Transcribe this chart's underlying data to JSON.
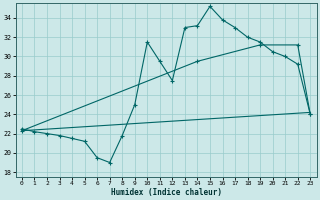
{
  "xlabel": "Humidex (Indice chaleur)",
  "bg_color": "#cce8e8",
  "grid_color": "#99cccc",
  "line_color": "#006666",
  "xlim": [
    -0.5,
    23.5
  ],
  "ylim": [
    17.5,
    35.5
  ],
  "yticks": [
    18,
    20,
    22,
    24,
    26,
    28,
    30,
    32,
    34
  ],
  "xticks": [
    0,
    1,
    2,
    3,
    4,
    5,
    6,
    7,
    8,
    9,
    10,
    11,
    12,
    13,
    14,
    15,
    16,
    17,
    18,
    19,
    20,
    21,
    22,
    23
  ],
  "curve1_x": [
    0,
    1,
    2,
    3,
    4,
    5,
    6,
    7,
    8,
    9,
    10,
    11,
    12,
    13,
    14,
    15,
    16,
    17,
    18,
    19,
    20,
    21,
    22,
    23
  ],
  "curve1_y": [
    22.5,
    22.2,
    22.0,
    21.8,
    21.5,
    21.2,
    19.5,
    19.0,
    21.8,
    25.0,
    31.5,
    29.5,
    27.5,
    33.0,
    33.2,
    35.2,
    33.8,
    33.0,
    32.0,
    31.5,
    30.5,
    30.0,
    29.2,
    24.0
  ],
  "curve2_x": [
    0,
    14,
    19,
    22,
    23
  ],
  "curve2_y": [
    22.3,
    29.5,
    31.2,
    31.2,
    24.0
  ],
  "curve3_x": [
    0,
    23
  ],
  "curve3_y": [
    22.3,
    24.2
  ]
}
